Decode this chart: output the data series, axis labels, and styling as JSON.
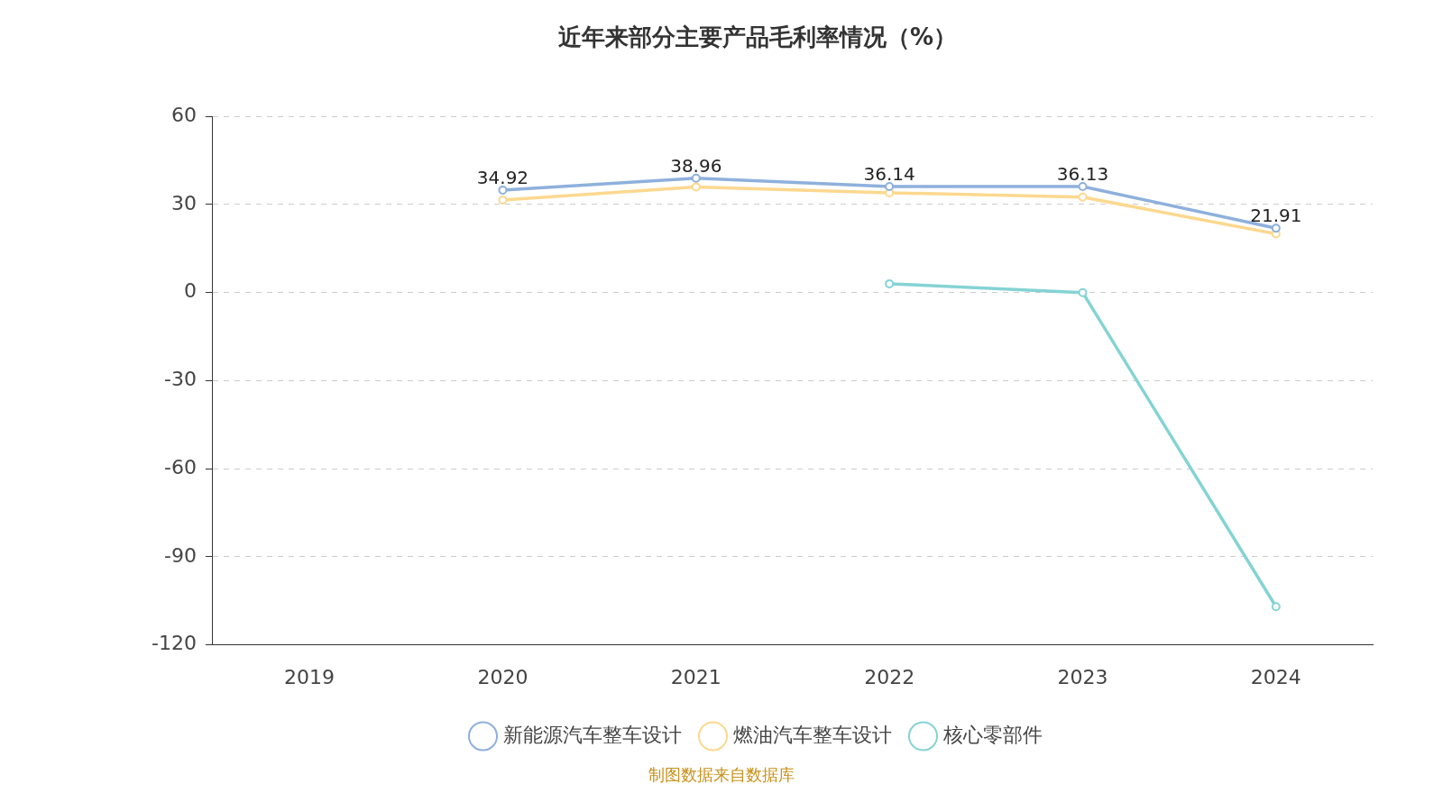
{
  "chart_data": {
    "type": "line",
    "title": "近年来部分主要产品毛利率情况（%）",
    "categories": [
      "2019",
      "2020",
      "2021",
      "2022",
      "2023",
      "2024"
    ],
    "series": [
      {
        "name": "新能源汽车整车设计",
        "color": "#8eb0dc",
        "values": [
          null,
          34.92,
          38.96,
          36.14,
          36.13,
          21.91
        ],
        "value_labels": [
          null,
          "34.92",
          "38.96",
          "36.14",
          "36.13",
          "21.91"
        ]
      },
      {
        "name": "燃油汽车整车设计",
        "color": "#fcd88f",
        "values": [
          null,
          31.5,
          36,
          34,
          32.5,
          20
        ]
      },
      {
        "name": "核心零部件",
        "color": "#85d3d4",
        "values": [
          null,
          null,
          null,
          3,
          0,
          -107
        ]
      }
    ],
    "ylim": [
      -120,
      60
    ],
    "yticks": [
      -120,
      -90,
      -60,
      -30,
      0,
      30,
      60
    ],
    "grid": "y",
    "legend": "bottom",
    "marker": "circle",
    "line_style": "solid",
    "annotations": [
      "制图数据来自数据库"
    ]
  }
}
